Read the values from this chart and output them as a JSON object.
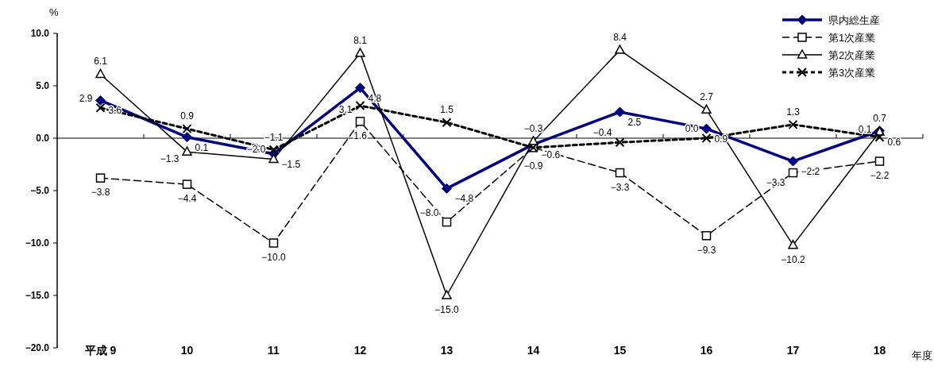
{
  "chart_data": {
    "type": "line",
    "ylabel": "%",
    "xlabel": "年度",
    "categories": [
      "平成 9",
      "10",
      "11",
      "12",
      "13",
      "14",
      "15",
      "16",
      "17",
      "18"
    ],
    "ylim": [
      -20,
      10
    ],
    "yticks": [
      {
        "value": -20,
        "label": "−20.0"
      },
      {
        "value": -15,
        "label": "−15.0"
      },
      {
        "value": -10,
        "label": "−10.0"
      },
      {
        "value": -5,
        "label": "−5.0"
      },
      {
        "value": 0,
        "label": "0.0"
      },
      {
        "value": 5,
        "label": "5.0"
      },
      {
        "value": 10,
        "label": "10.0"
      }
    ],
    "legend": "top right",
    "series": [
      {
        "name": "県内総生産",
        "color": "#000080",
        "marker": "diamond",
        "line_style": "solid",
        "values": [
          3.6,
          0.1,
          -1.5,
          4.8,
          -4.8,
          -0.6,
          2.5,
          0.9,
          -2.2,
          0.7
        ],
        "value_labels": [
          "3.6",
          "0.1",
          "−1.5",
          "4.8",
          "−4.8",
          "−0.6",
          "2.5",
          "0.9",
          "−2.2",
          "0.7"
        ]
      },
      {
        "name": "第1次産業",
        "color": "#000000",
        "marker": "square",
        "line_style": "dashed",
        "values": [
          -3.8,
          -4.4,
          -10.0,
          1.6,
          -8.0,
          -0.9,
          -3.3,
          -9.3,
          -3.3,
          -2.2
        ],
        "value_labels": [
          "−3.8",
          "−4.4",
          "−10.0",
          "1.6",
          "−8.0",
          "−0.9",
          "−3.3",
          "−9.3",
          "−3.3",
          "−2.2"
        ]
      },
      {
        "name": "第2次産業",
        "color": "#000000",
        "marker": "triangle",
        "line_style": "solid",
        "values": [
          6.1,
          -1.3,
          -2.0,
          8.1,
          -15.0,
          -0.3,
          8.4,
          2.7,
          -10.2,
          0.6
        ],
        "value_labels": [
          "6.1",
          "−1.3",
          "−2.0",
          "8.1",
          "−15.0",
          "−0.3",
          "8.4",
          "2.7",
          "−10.2",
          "0.6"
        ]
      },
      {
        "name": "第3次産業",
        "color": "#000000",
        "marker": "cross",
        "line_style": "dotted",
        "values": [
          2.9,
          0.9,
          -1.1,
          3.1,
          1.5,
          -0.9,
          -0.4,
          0.0,
          1.3,
          0.1
        ],
        "value_labels": [
          "2.9",
          "0.9",
          "−1.1",
          "3.1",
          "1.5",
          null,
          "−0.4",
          "0.0",
          "1.3",
          "0.1"
        ]
      }
    ]
  }
}
